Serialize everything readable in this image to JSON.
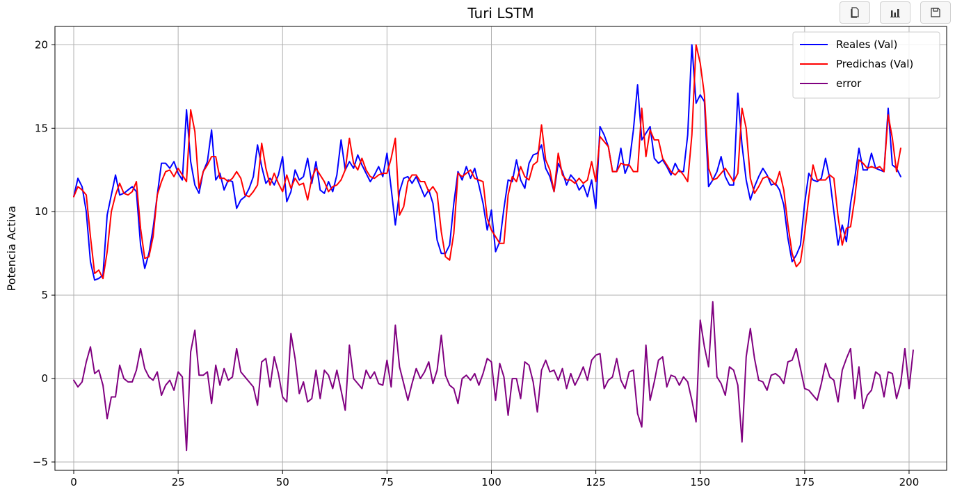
{
  "toolbar": {
    "buttons": [
      {
        "icon": "copy-icon"
      },
      {
        "icon": "bar-chart-icon"
      },
      {
        "icon": "save-icon"
      }
    ]
  },
  "chart_data": {
    "type": "line",
    "title": "Turi LSTM",
    "xlabel": "",
    "ylabel": "Potencia Activa",
    "xlim": [
      -4.5,
      209
    ],
    "ylim": [
      -5.5,
      21.1
    ],
    "xticks": [
      0,
      25,
      50,
      75,
      100,
      125,
      150,
      175,
      200
    ],
    "yticks": [
      -5,
      0,
      5,
      10,
      15,
      20
    ],
    "ytick_labels": [
      "−5",
      "0",
      "5",
      "10",
      "15",
      "20"
    ],
    "grid": true,
    "legend_position": "top-right",
    "series": [
      {
        "name": "Reales (Val)",
        "color": "#0000ff",
        "values": [
          10.9,
          12.0,
          11.5,
          10.0,
          7.0,
          5.9,
          6.0,
          6.2,
          9.8,
          11.0,
          12.2,
          11.0,
          11.1,
          11.3,
          11.5,
          11.2,
          8.0,
          6.6,
          7.5,
          9.0,
          11.0,
          12.9,
          12.9,
          12.6,
          13.0,
          12.3,
          11.9,
          16.1,
          13.0,
          11.6,
          11.1,
          12.4,
          13.0,
          14.9,
          11.9,
          12.3,
          11.3,
          11.9,
          11.8,
          10.2,
          10.7,
          10.9,
          11.4,
          12.1,
          14.0,
          12.7,
          11.7,
          12.0,
          11.6,
          12.2,
          13.3,
          10.6,
          11.2,
          12.5,
          11.9,
          12.1,
          13.2,
          11.7,
          13.0,
          11.3,
          11.1,
          11.8,
          11.2,
          12.2,
          14.3,
          12.5,
          13.0,
          12.6,
          13.4,
          12.8,
          12.3,
          11.8,
          12.2,
          12.7,
          12.1,
          13.5,
          11.4,
          9.2,
          11.2,
          12.0,
          12.1,
          11.7,
          12.1,
          11.5,
          10.9,
          11.3,
          10.5,
          8.3,
          7.5,
          7.5,
          8.0,
          10.5,
          12.4,
          11.9,
          12.7,
          12.0,
          12.6,
          11.6,
          10.5,
          8.9,
          10.1,
          7.6,
          8.2,
          10.2,
          11.9,
          11.8,
          13.1,
          11.9,
          11.4,
          12.9,
          13.4,
          13.5,
          14.0,
          12.6,
          12.1,
          11.2,
          12.9,
          12.4,
          11.6,
          12.2,
          11.9,
          11.3,
          11.6,
          10.9,
          11.9,
          10.2,
          15.1,
          14.6,
          13.9,
          12.4,
          12.4,
          13.8,
          12.3,
          12.9,
          14.9,
          17.6,
          14.3,
          14.7,
          15.1,
          13.2,
          12.9,
          13.1,
          12.7,
          12.2,
          12.9,
          12.4,
          12.4,
          14.6,
          20.0,
          16.5,
          17.0,
          16.6,
          11.5,
          11.9,
          12.4,
          13.3,
          12.1,
          11.6,
          11.6,
          17.1,
          14.0,
          11.9,
          10.7,
          11.5,
          12.1,
          12.6,
          12.2,
          11.6,
          11.7,
          11.3,
          10.4,
          8.4,
          7.0,
          7.4,
          8.0,
          10.5,
          12.3,
          11.9,
          11.8,
          12.0,
          13.2,
          12.0,
          10.0,
          8.0,
          9.2,
          8.2,
          10.5,
          12.0,
          13.8,
          12.5,
          12.5,
          13.5,
          12.6,
          12.5,
          12.4,
          16.2,
          12.8,
          12.6,
          12.1
        ]
      },
      {
        "name": "Predichas (Val)",
        "color": "#ff0000",
        "values": [
          10.9,
          11.5,
          11.3,
          11.0,
          8.5,
          6.3,
          6.5,
          6.0,
          7.6,
          10.0,
          11.0,
          11.7,
          11.1,
          11.0,
          11.2,
          11.8,
          9.0,
          7.2,
          7.3,
          8.5,
          11.0,
          11.8,
          12.4,
          12.5,
          12.1,
          12.6,
          12.2,
          11.8,
          16.1,
          14.8,
          11.4,
          12.4,
          12.8,
          13.3,
          13.3,
          12.0,
          12.0,
          11.8,
          12.0,
          12.4,
          12.0,
          11.0,
          10.9,
          11.2,
          11.6,
          14.1,
          12.6,
          11.6,
          12.3,
          11.7,
          11.2,
          12.2,
          11.4,
          12.0,
          11.6,
          11.7,
          10.7,
          12.0,
          12.6,
          12.2,
          11.8,
          11.2,
          11.5,
          11.6,
          11.9,
          12.5,
          14.4,
          12.9,
          12.5,
          13.2,
          12.5,
          12.1,
          12.0,
          12.2,
          12.3,
          12.3,
          13.2,
          14.4,
          9.8,
          10.3,
          11.8,
          12.2,
          12.2,
          11.8,
          11.8,
          11.2,
          11.5,
          11.1,
          8.8,
          7.3,
          7.1,
          8.7,
          12.3,
          12.1,
          12.3,
          12.5,
          12.0,
          11.9,
          11.8,
          9.6,
          8.9,
          8.5,
          8.1,
          8.1,
          11.0,
          12.1,
          11.8,
          12.7,
          12.1,
          11.9,
          12.8,
          13.0,
          15.2,
          13.1,
          12.5,
          11.2,
          13.5,
          12.2,
          11.9,
          11.9,
          11.7,
          12.0,
          11.7,
          11.9,
          13.0,
          11.8,
          14.5,
          14.2,
          13.9,
          12.4,
          12.4,
          12.9,
          12.8,
          12.8,
          12.4,
          12.4,
          16.2,
          13.3,
          14.9,
          14.3,
          14.3,
          13.2,
          12.8,
          12.4,
          12.2,
          12.5,
          12.2,
          11.8,
          14.6,
          20.0,
          18.9,
          17.0,
          12.6,
          11.9,
          12.0,
          12.3,
          12.6,
          12.2,
          11.8,
          12.3,
          16.2,
          15.0,
          12.0,
          11.1,
          11.5,
          12.0,
          12.1,
          11.9,
          11.6,
          12.4,
          11.3,
          9.2,
          7.5,
          6.7,
          7.0,
          8.7,
          10.9,
          12.8,
          11.9,
          11.9,
          11.9,
          12.2,
          12.0,
          9.7,
          8.0,
          9.0,
          9.1,
          10.8,
          13.1,
          12.9,
          12.6,
          12.7,
          12.6,
          12.7,
          12.4,
          15.8,
          14.4,
          12.4,
          13.8
        ]
      },
      {
        "name": "error",
        "color": "#800080",
        "values": [
          -0.1,
          -0.5,
          -0.2,
          1.0,
          1.9,
          0.3,
          0.5,
          -0.4,
          -2.4,
          -1.1,
          -1.1,
          0.8,
          0.0,
          -0.2,
          -0.2,
          0.5,
          1.8,
          0.6,
          0.1,
          -0.1,
          0.4,
          -1.0,
          -0.4,
          -0.1,
          -0.7,
          0.4,
          0.1,
          -4.3,
          1.6,
          2.9,
          0.2,
          0.2,
          0.4,
          -1.5,
          0.8,
          -0.4,
          0.6,
          -0.1,
          0.1,
          1.8,
          0.4,
          0.1,
          -0.2,
          -0.5,
          -1.6,
          1.0,
          1.2,
          -0.5,
          1.3,
          0.3,
          -1.1,
          -1.4,
          2.7,
          1.2,
          -0.9,
          -0.2,
          -1.4,
          -1.2,
          0.5,
          -1.2,
          0.5,
          0.2,
          -0.6,
          0.5,
          -0.7,
          -1.9,
          2.0,
          0.0,
          -0.3,
          -0.6,
          0.5,
          0.0,
          0.4,
          -0.3,
          -0.4,
          1.1,
          -0.5,
          3.2,
          0.7,
          -0.3,
          -1.3,
          -0.3,
          0.6,
          0.0,
          0.4,
          1.0,
          -0.3,
          0.5,
          2.6,
          0.2,
          -0.4,
          -0.6,
          -1.5,
          0.0,
          0.2,
          -0.1,
          0.3,
          -0.4,
          0.3,
          1.2,
          1.0,
          -1.3,
          0.9,
          0.1,
          -2.2,
          0.0,
          0.0,
          -1.2,
          1.0,
          0.8,
          -0.2,
          -2.0,
          0.5,
          1.1,
          0.4,
          0.5,
          -0.1,
          0.6,
          -0.6,
          0.3,
          -0.4,
          0.1,
          0.7,
          -0.1,
          1.1,
          1.4,
          1.5,
          -0.6,
          -0.1,
          0.1,
          1.2,
          -0.1,
          -0.6,
          0.4,
          0.5,
          -2.1,
          -2.9,
          2.0,
          -1.3,
          -0.2,
          1.1,
          1.3,
          -0.5,
          0.2,
          0.1,
          -0.4,
          0.1,
          -0.2,
          -1.3,
          -2.6,
          3.5,
          1.9,
          0.7,
          4.6,
          0.1,
          -0.3,
          -1.0,
          0.7,
          0.5,
          -0.4,
          -3.8,
          1.3,
          3.0,
          1.2,
          -0.1,
          -0.2,
          -0.7,
          0.2,
          0.3,
          0.1,
          -0.3,
          1.0,
          1.1,
          1.8,
          0.6,
          -0.6,
          -0.7,
          -1.0,
          -1.3,
          -0.3,
          0.9,
          0.1,
          -0.1,
          -1.4,
          0.5,
          1.2,
          1.8,
          -1.2,
          0.7,
          -1.8,
          -1.0,
          -0.7,
          0.4,
          0.2,
          -1.1,
          0.4,
          0.3,
          -1.2,
          -0.3,
          1.8,
          -0.6,
          1.7
        ]
      }
    ]
  }
}
